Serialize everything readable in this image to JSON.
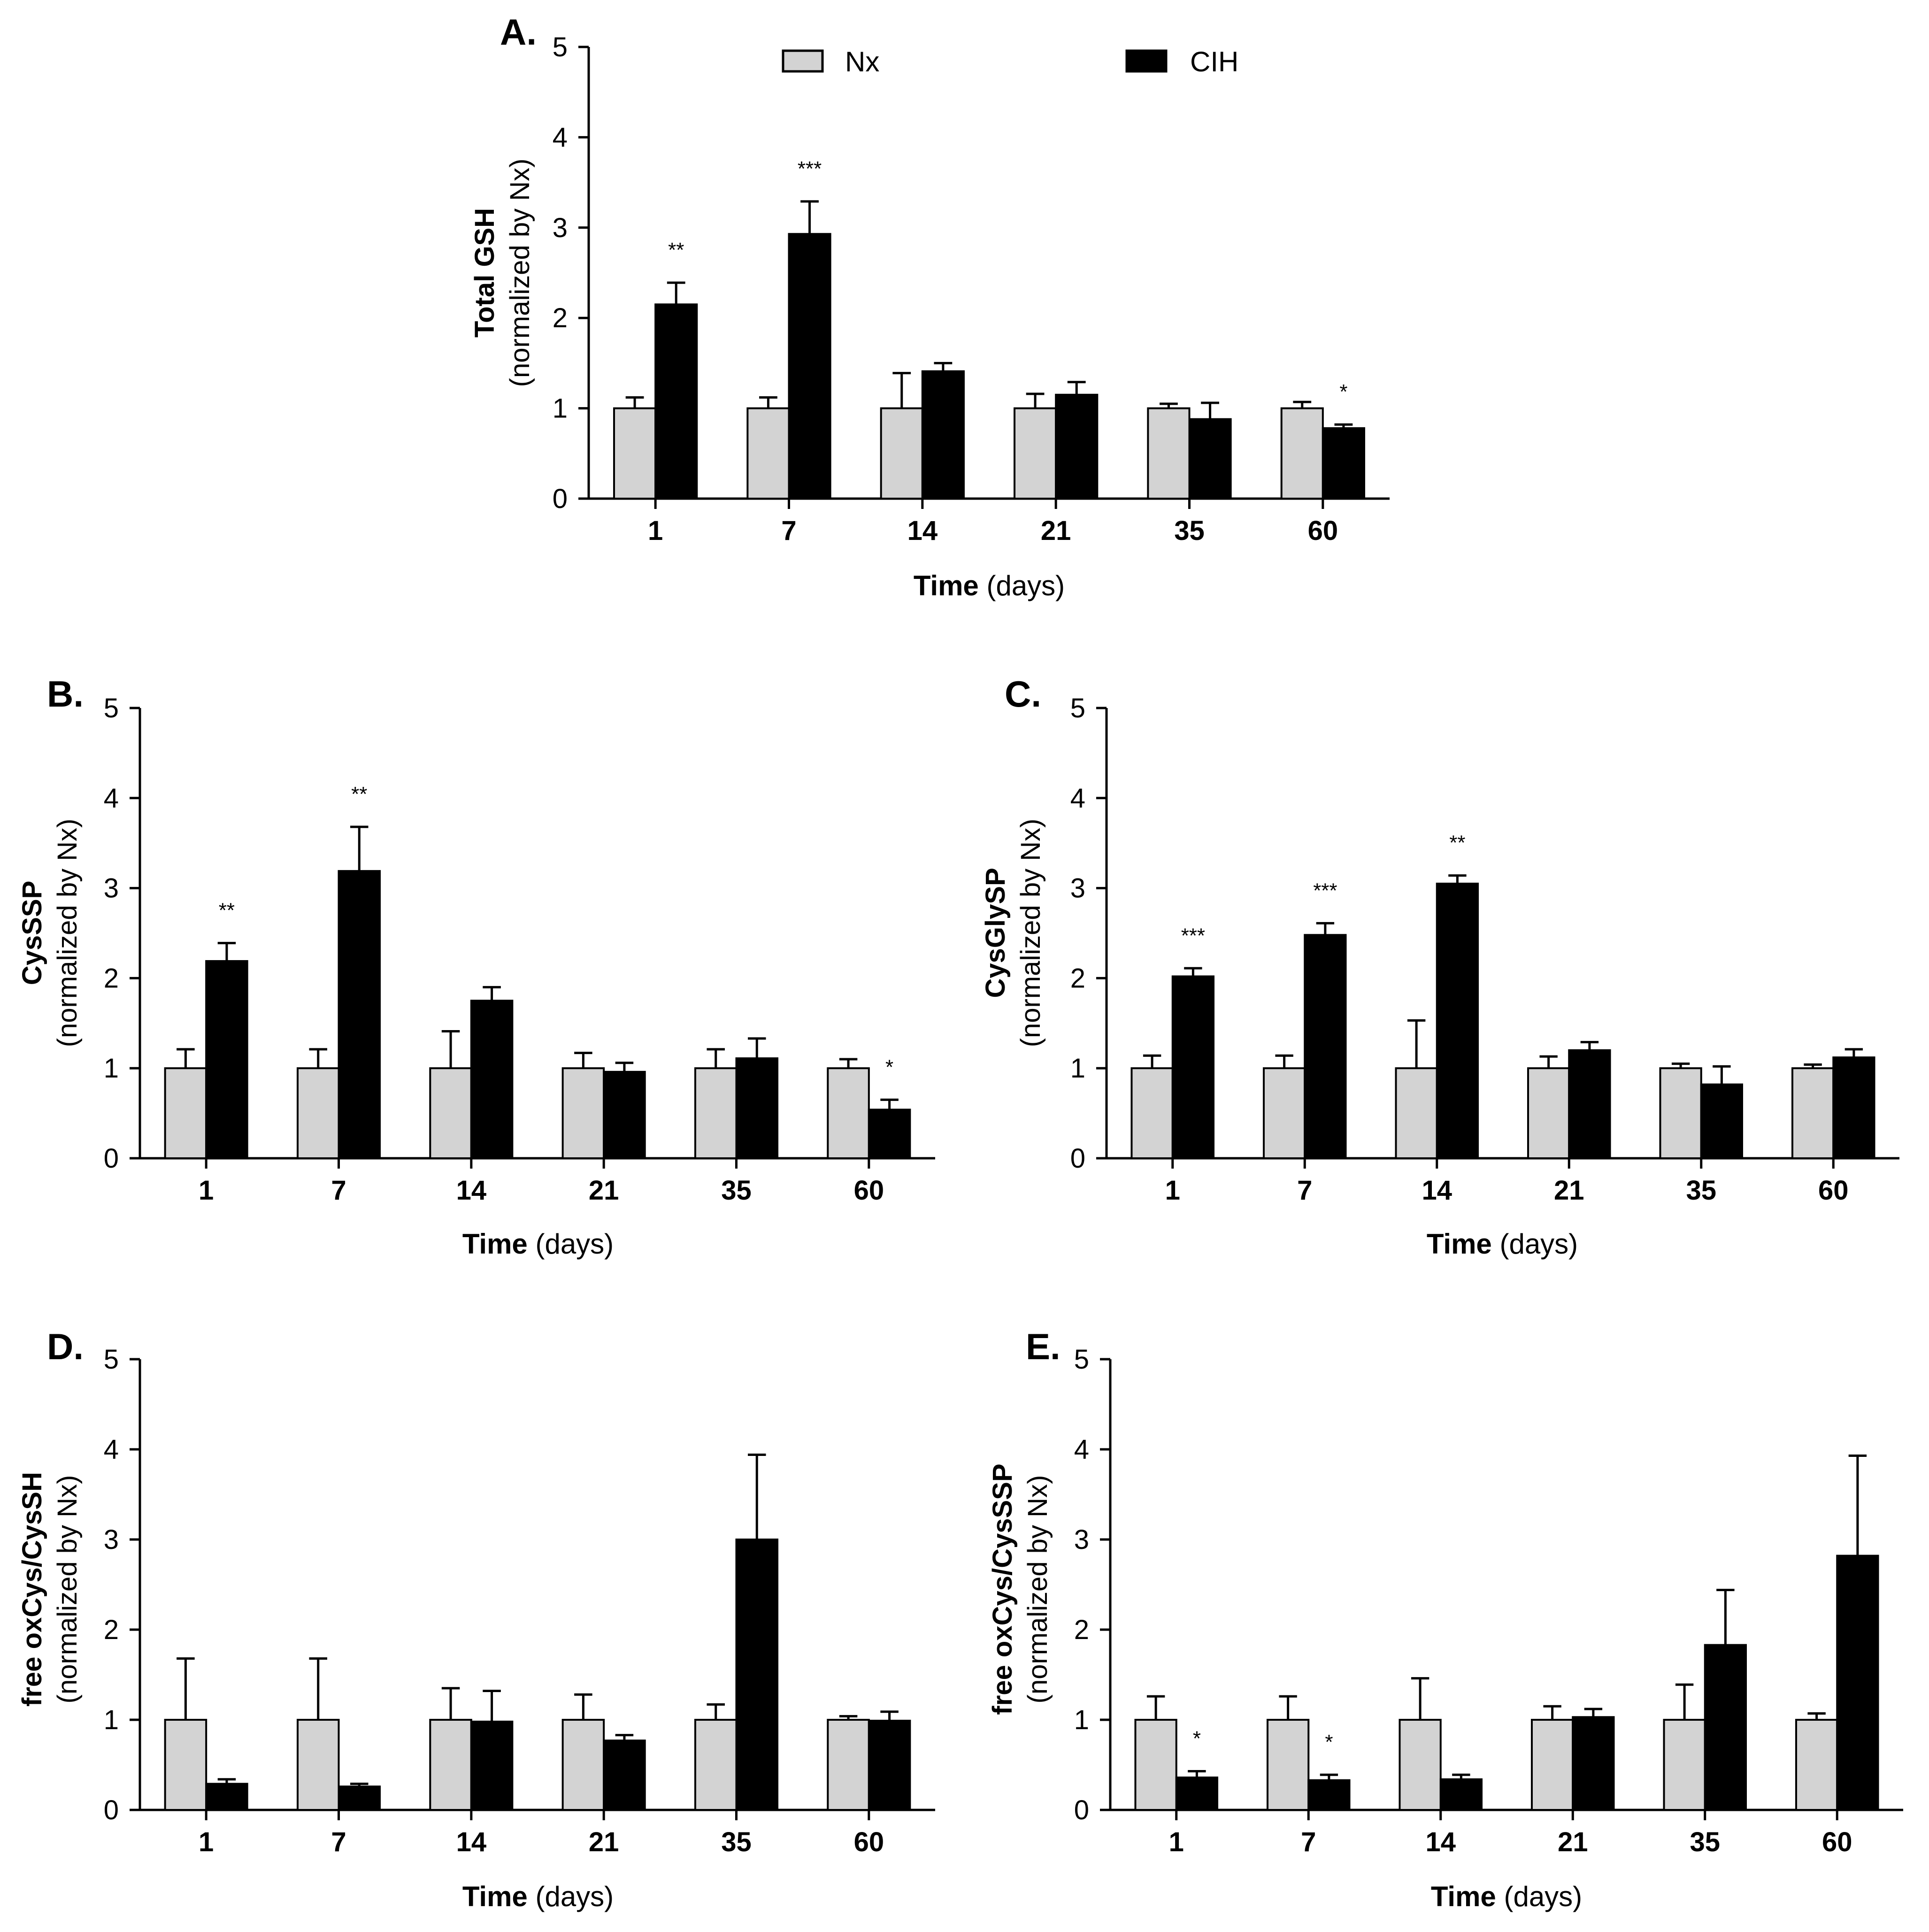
{
  "colors": {
    "nx": "#d3d3d3",
    "cih": "#000000",
    "axis": "#000000"
  },
  "legend": [
    {
      "key": "nx",
      "label": "Nx"
    },
    {
      "key": "cih",
      "label": "CIH"
    }
  ],
  "chart_data": [
    {
      "id": "A",
      "panel": "A.",
      "type": "bar",
      "title": "",
      "xlabel_main": "Time",
      "xlabel_unit": " (days)",
      "ylabel_main": "Total GSH",
      "ylabel_sub": "(normalized by Nx)",
      "ylim": [
        0,
        5
      ],
      "yticks": [
        "0",
        "1",
        "2",
        "3",
        "4",
        "5"
      ],
      "categories": [
        "1",
        "7",
        "14",
        "21",
        "35",
        "60"
      ],
      "series": [
        {
          "name": "Nx",
          "values": [
            1.0,
            1.0,
            1.0,
            1.0,
            1.0,
            1.0
          ],
          "errors": [
            0.12,
            0.12,
            0.39,
            0.16,
            0.05,
            0.07
          ]
        },
        {
          "name": "CIH",
          "values": [
            2.15,
            2.93,
            1.41,
            1.15,
            0.88,
            0.78
          ],
          "errors": [
            0.24,
            0.36,
            0.09,
            0.14,
            0.18,
            0.04
          ]
        }
      ],
      "significance": [
        "**",
        "***",
        "",
        "",
        "",
        "*"
      ]
    },
    {
      "id": "B",
      "panel": "B.",
      "type": "bar",
      "title": "",
      "xlabel_main": "Time",
      "xlabel_unit": " (days)",
      "ylabel_main": "CysSSP",
      "ylabel_sub": "(normalized by Nx)",
      "ylim": [
        0,
        5
      ],
      "yticks": [
        "0",
        "1",
        "2",
        "3",
        "4",
        "5"
      ],
      "categories": [
        "1",
        "7",
        "14",
        "21",
        "35",
        "60"
      ],
      "series": [
        {
          "name": "Nx",
          "values": [
            1.0,
            1.0,
            1.0,
            1.0,
            1.0,
            1.0
          ],
          "errors": [
            0.21,
            0.21,
            0.41,
            0.17,
            0.21,
            0.1
          ]
        },
        {
          "name": "CIH",
          "values": [
            2.19,
            3.19,
            1.75,
            0.96,
            1.11,
            0.54
          ],
          "errors": [
            0.2,
            0.49,
            0.15,
            0.1,
            0.22,
            0.11
          ]
        }
      ],
      "significance": [
        "**",
        "**",
        "",
        "",
        "",
        "*"
      ]
    },
    {
      "id": "C",
      "panel": "C.",
      "type": "bar",
      "title": "",
      "xlabel_main": "Time",
      "xlabel_unit": " (days)",
      "ylabel_main": "CysGlySP",
      "ylabel_sub": "(normalized by Nx)",
      "ylim": [
        0,
        5
      ],
      "yticks": [
        "0",
        "1",
        "2",
        "3",
        "4",
        "5"
      ],
      "categories": [
        "1",
        "7",
        "14",
        "21",
        "35",
        "60"
      ],
      "series": [
        {
          "name": "Nx",
          "values": [
            1.0,
            1.0,
            1.0,
            1.0,
            1.0,
            1.0
          ],
          "errors": [
            0.14,
            0.14,
            0.53,
            0.13,
            0.05,
            0.04
          ]
        },
        {
          "name": "CIH",
          "values": [
            2.02,
            2.48,
            3.05,
            1.2,
            0.82,
            1.12
          ],
          "errors": [
            0.09,
            0.13,
            0.09,
            0.09,
            0.2,
            0.09
          ]
        }
      ],
      "significance": [
        "***",
        "***",
        "**",
        "",
        "",
        ""
      ]
    },
    {
      "id": "D",
      "panel": "D.",
      "type": "bar",
      "title": "",
      "xlabel_main": "Time",
      "xlabel_unit": " (days)",
      "ylabel_main": "free oxCys/CysSH",
      "ylabel_sub": "(normalized by Nx)",
      "ylim": [
        0,
        5
      ],
      "yticks": [
        "0",
        "1",
        "2",
        "3",
        "4",
        "5"
      ],
      "categories": [
        "1",
        "7",
        "14",
        "21",
        "35",
        "60"
      ],
      "series": [
        {
          "name": "Nx",
          "values": [
            1.0,
            1.0,
            1.0,
            1.0,
            1.0,
            1.0
          ],
          "errors": [
            0.68,
            0.68,
            0.35,
            0.28,
            0.17,
            0.04
          ]
        },
        {
          "name": "CIH",
          "values": [
            0.29,
            0.26,
            0.98,
            0.77,
            3.0,
            0.99
          ],
          "errors": [
            0.05,
            0.03,
            0.34,
            0.06,
            0.94,
            0.1
          ]
        }
      ],
      "significance": [
        "",
        "",
        "",
        "",
        "",
        ""
      ]
    },
    {
      "id": "E",
      "panel": "E.",
      "type": "bar",
      "title": "",
      "xlabel_main": "Time",
      "xlabel_unit": " (days)",
      "ylabel_main": "free oxCys/CysSSP",
      "ylabel_sub": "(normalized by Nx)",
      "ylim": [
        0,
        5
      ],
      "yticks": [
        "0",
        "1",
        "2",
        "3",
        "4",
        "5"
      ],
      "categories": [
        "1",
        "7",
        "14",
        "21",
        "35",
        "60"
      ],
      "series": [
        {
          "name": "Nx",
          "values": [
            1.0,
            1.0,
            1.0,
            1.0,
            1.0,
            1.0
          ],
          "errors": [
            0.26,
            0.26,
            0.46,
            0.15,
            0.39,
            0.07
          ]
        },
        {
          "name": "CIH",
          "values": [
            0.36,
            0.33,
            0.34,
            1.03,
            1.83,
            2.82
          ],
          "errors": [
            0.07,
            0.06,
            0.05,
            0.09,
            0.61,
            1.11
          ]
        }
      ],
      "significance": [
        "*",
        "*",
        "",
        "",
        "",
        ""
      ]
    }
  ]
}
